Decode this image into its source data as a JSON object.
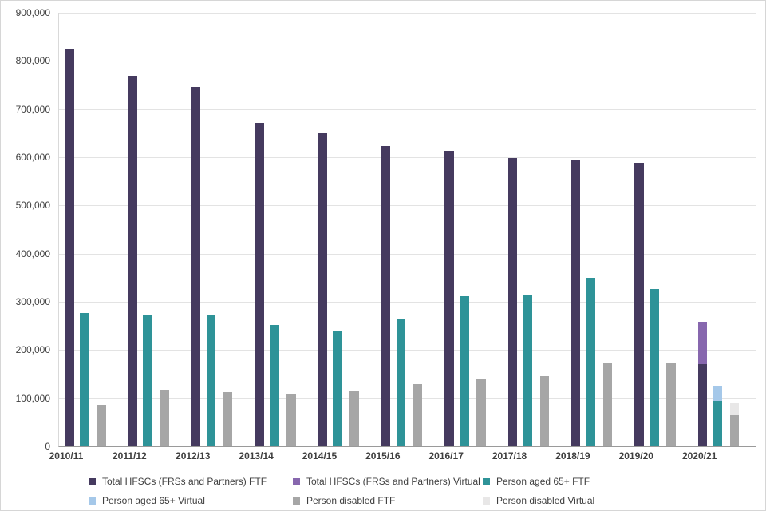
{
  "chart_data": {
    "type": "bar",
    "title": "",
    "xlabel": "",
    "ylabel": "",
    "categories": [
      "2010/11",
      "2011/12",
      "2012/13",
      "2013/14",
      "2014/15",
      "2015/16",
      "2016/17",
      "2017/18",
      "2018/19",
      "2019/20",
      "2020/21"
    ],
    "series": [
      {
        "name": "Total HFSCs (FRSs and Partners) FTF",
        "color": "#453a5f",
        "values": [
          825000,
          769000,
          746000,
          671000,
          651000,
          624000,
          614000,
          599000,
          595000,
          588000,
          170000
        ]
      },
      {
        "name": "Total HFSCs (FRSs and Partners) Virtual",
        "color": "#8767ae",
        "values": [
          0,
          0,
          0,
          0,
          0,
          0,
          0,
          0,
          0,
          0,
          258000
        ]
      },
      {
        "name": "Person aged 65+ FTF",
        "color": "#2e9398",
        "values": [
          277000,
          272000,
          273000,
          252000,
          241000,
          266000,
          312000,
          315000,
          350000,
          326000,
          95000
        ]
      },
      {
        "name": "Person aged 65+ Virtual",
        "color": "#a5c8e9",
        "values": [
          0,
          0,
          0,
          0,
          0,
          0,
          0,
          0,
          0,
          0,
          125000
        ]
      },
      {
        "name": "Person disabled FTF",
        "color": "#a6a6a6",
        "values": [
          86000,
          118000,
          112000,
          110000,
          114000,
          130000,
          140000,
          146000,
          173000,
          173000,
          65000
        ]
      },
      {
        "name": "Person disabled Virtual",
        "color": "#e8e7e7",
        "values": [
          0,
          0,
          0,
          0,
          0,
          0,
          0,
          0,
          0,
          0,
          89000
        ]
      }
    ],
    "ylim": [
      0,
      900000
    ],
    "yticks": [
      0,
      100000,
      200000,
      300000,
      400000,
      500000,
      600000,
      700000,
      800000,
      900000
    ],
    "ytick_labels": [
      "0",
      "100,000",
      "200,000",
      "300,000",
      "400,000",
      "500,000",
      "600,000",
      "700,000",
      "800,000",
      "900,000"
    ],
    "grid": true,
    "legend_position": "bottom",
    "overlay_pairs": [
      [
        0,
        1
      ],
      [
        2,
        3
      ],
      [
        4,
        5
      ]
    ]
  }
}
